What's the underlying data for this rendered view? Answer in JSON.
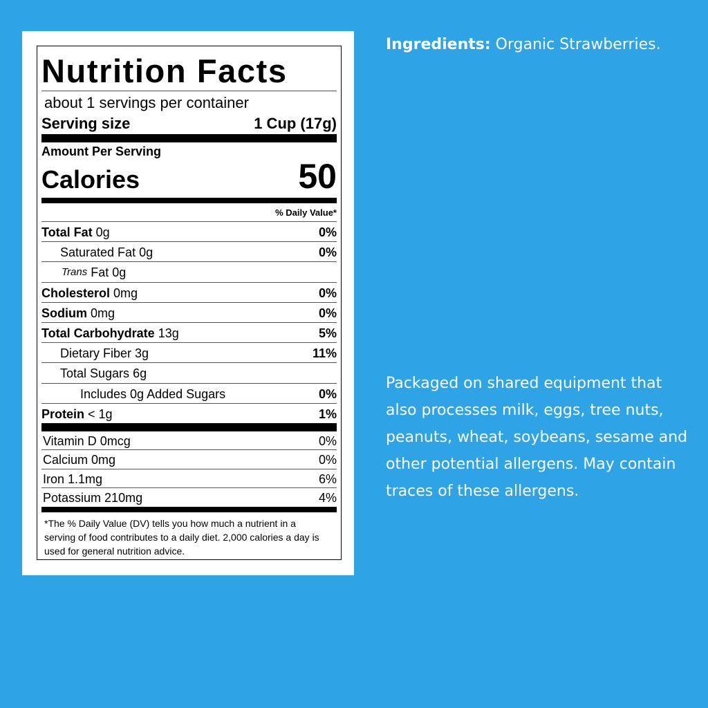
{
  "label": {
    "title": "Nutrition Facts",
    "servings": "about 1 servings per container",
    "serving_size_label": "Serving size",
    "serving_size": "1 Cup (17g)",
    "amount_per_serving": "Amount Per Serving",
    "calories_label": "Calories",
    "calories": 50,
    "daily_value_header": "% Daily Value*",
    "nutrients": [
      {
        "name": "Total Fat",
        "amount": "0g",
        "dv": "0%"
      },
      {
        "name": "Saturated Fat",
        "amount": "0g",
        "dv": "0%"
      },
      {
        "name": "Trans",
        "amount": "Fat 0g"
      },
      {
        "name": "Cholesterol",
        "amount": "0mg",
        "dv": "0%"
      },
      {
        "name": "Sodium",
        "amount": "0mg",
        "dv": "0%"
      },
      {
        "name": "Total Carbohydrate",
        "amount": "13g",
        "dv": "5%"
      },
      {
        "name": "Dietary Fiber",
        "amount": "3g",
        "dv": "11%"
      },
      {
        "name": "Total Sugars",
        "amount": "6g"
      },
      {
        "name": "Includes",
        "amount": "0g Added Sugars",
        "dv": "0%"
      },
      {
        "name": "Protein",
        "amount": "< 1g",
        "dv": "1%"
      }
    ],
    "vitamins": [
      {
        "name": "Vitamin D",
        "amount": "0mcg",
        "dv": "0%"
      },
      {
        "name": "Calcium",
        "amount": "0mg",
        "dv": "0%"
      },
      {
        "name": "Iron",
        "amount": "1.1mg",
        "dv": "6%"
      },
      {
        "name": "Potassium",
        "amount": "210mg",
        "dv": "4%"
      }
    ],
    "footnote": "*The % Daily Value (DV) tells you how much a nutrient in a serving of food contributes to a daily diet. 2,000 calories a day is used for general nutrition advice."
  },
  "ingredients": {
    "label": "Ingredients:",
    "text": "Organic Strawberries."
  },
  "allergen_statement": "Packaged on shared equipment that also processes milk, eggs, tree nuts, peanuts, wheat, soybeans, sesame and other potential allergens. May contain traces of these allergens."
}
